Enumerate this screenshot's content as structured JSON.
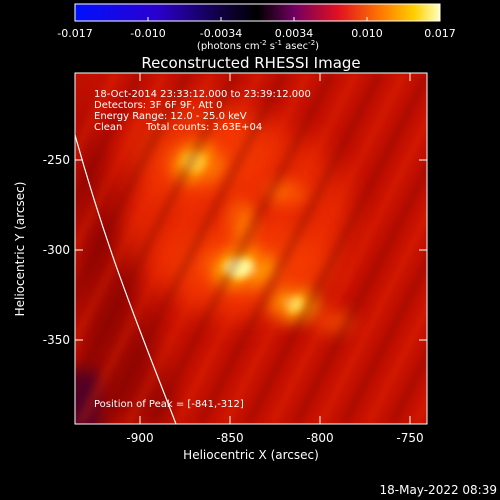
{
  "colorbar": {
    "ticks": [
      "-0.017",
      "-0.010",
      "-0.0034",
      "0.0034",
      "0.010",
      "0.017"
    ],
    "unit_main": "(photons cm",
    "unit_exp1": "-2",
    "unit_mid1": " s",
    "unit_exp2": "-1",
    "unit_mid2": " asec",
    "unit_exp3": "-2",
    "unit_end": ")"
  },
  "title": "Reconstructed RHESSI Image",
  "info": {
    "line1": "18-Oct-2014 23:33:12.000 to 23:39:12.000",
    "line2": "Detectors: 3F 6F 9F, Att 0",
    "line3": "Energy Range: 12.0 - 25.0 keV",
    "line4a": "Clean",
    "line4b": "Total counts: 3.63E+04",
    "peak": "Position of Peak = [-841,-312]"
  },
  "axes": {
    "xlabel": "Heliocentric X (arcsec)",
    "ylabel": "Heliocentric Y (arcsec)",
    "xticks": [
      "-900",
      "-850",
      "-800",
      "-750"
    ],
    "yticks": [
      "-250",
      "-300",
      "-350"
    ]
  },
  "timestamp": "18-May-2022 08:39",
  "colors": {
    "background": "#000000",
    "foreground": "#ffffff",
    "image_base": "#d41400",
    "limb": "#ffffff"
  }
}
